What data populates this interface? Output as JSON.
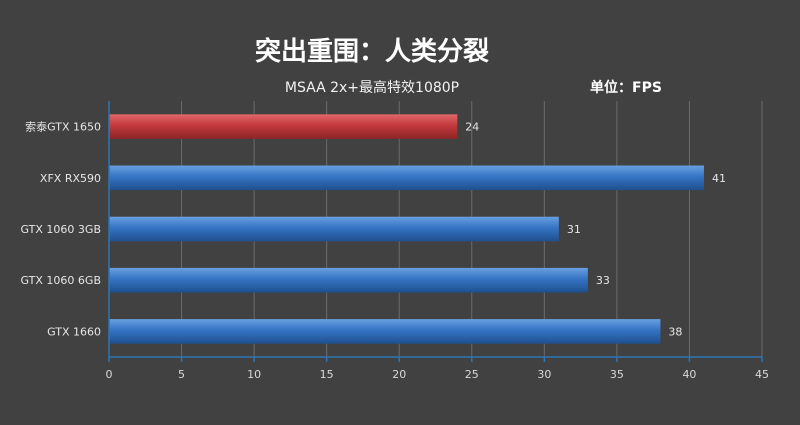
{
  "chart_data": {
    "type": "bar",
    "orientation": "horizontal",
    "title": "突出重围：人类分裂",
    "subtitle": "MSAA 2x+最高特效1080P",
    "unit_label": "单位：FPS",
    "categories": [
      "索泰GTX 1650",
      "XFX RX590",
      "GTX 1060 3GB",
      "GTX 1060 6GB",
      "GTX 1660"
    ],
    "values": [
      24,
      41,
      31,
      33,
      38
    ],
    "bar_colors": [
      "#c0393b",
      "#2f6db5",
      "#2f6db5",
      "#2f6db5",
      "#2f6db5"
    ],
    "xlim": [
      0,
      45
    ],
    "xticks": [
      0,
      5,
      10,
      15,
      20,
      25,
      30,
      35,
      40,
      45
    ],
    "grid": true,
    "xlabel": "",
    "ylabel": ""
  },
  "colors": {
    "background": "#414141",
    "highlight": "#c0393b",
    "bar": "#2f6db5",
    "axis": "#2e75b6"
  }
}
